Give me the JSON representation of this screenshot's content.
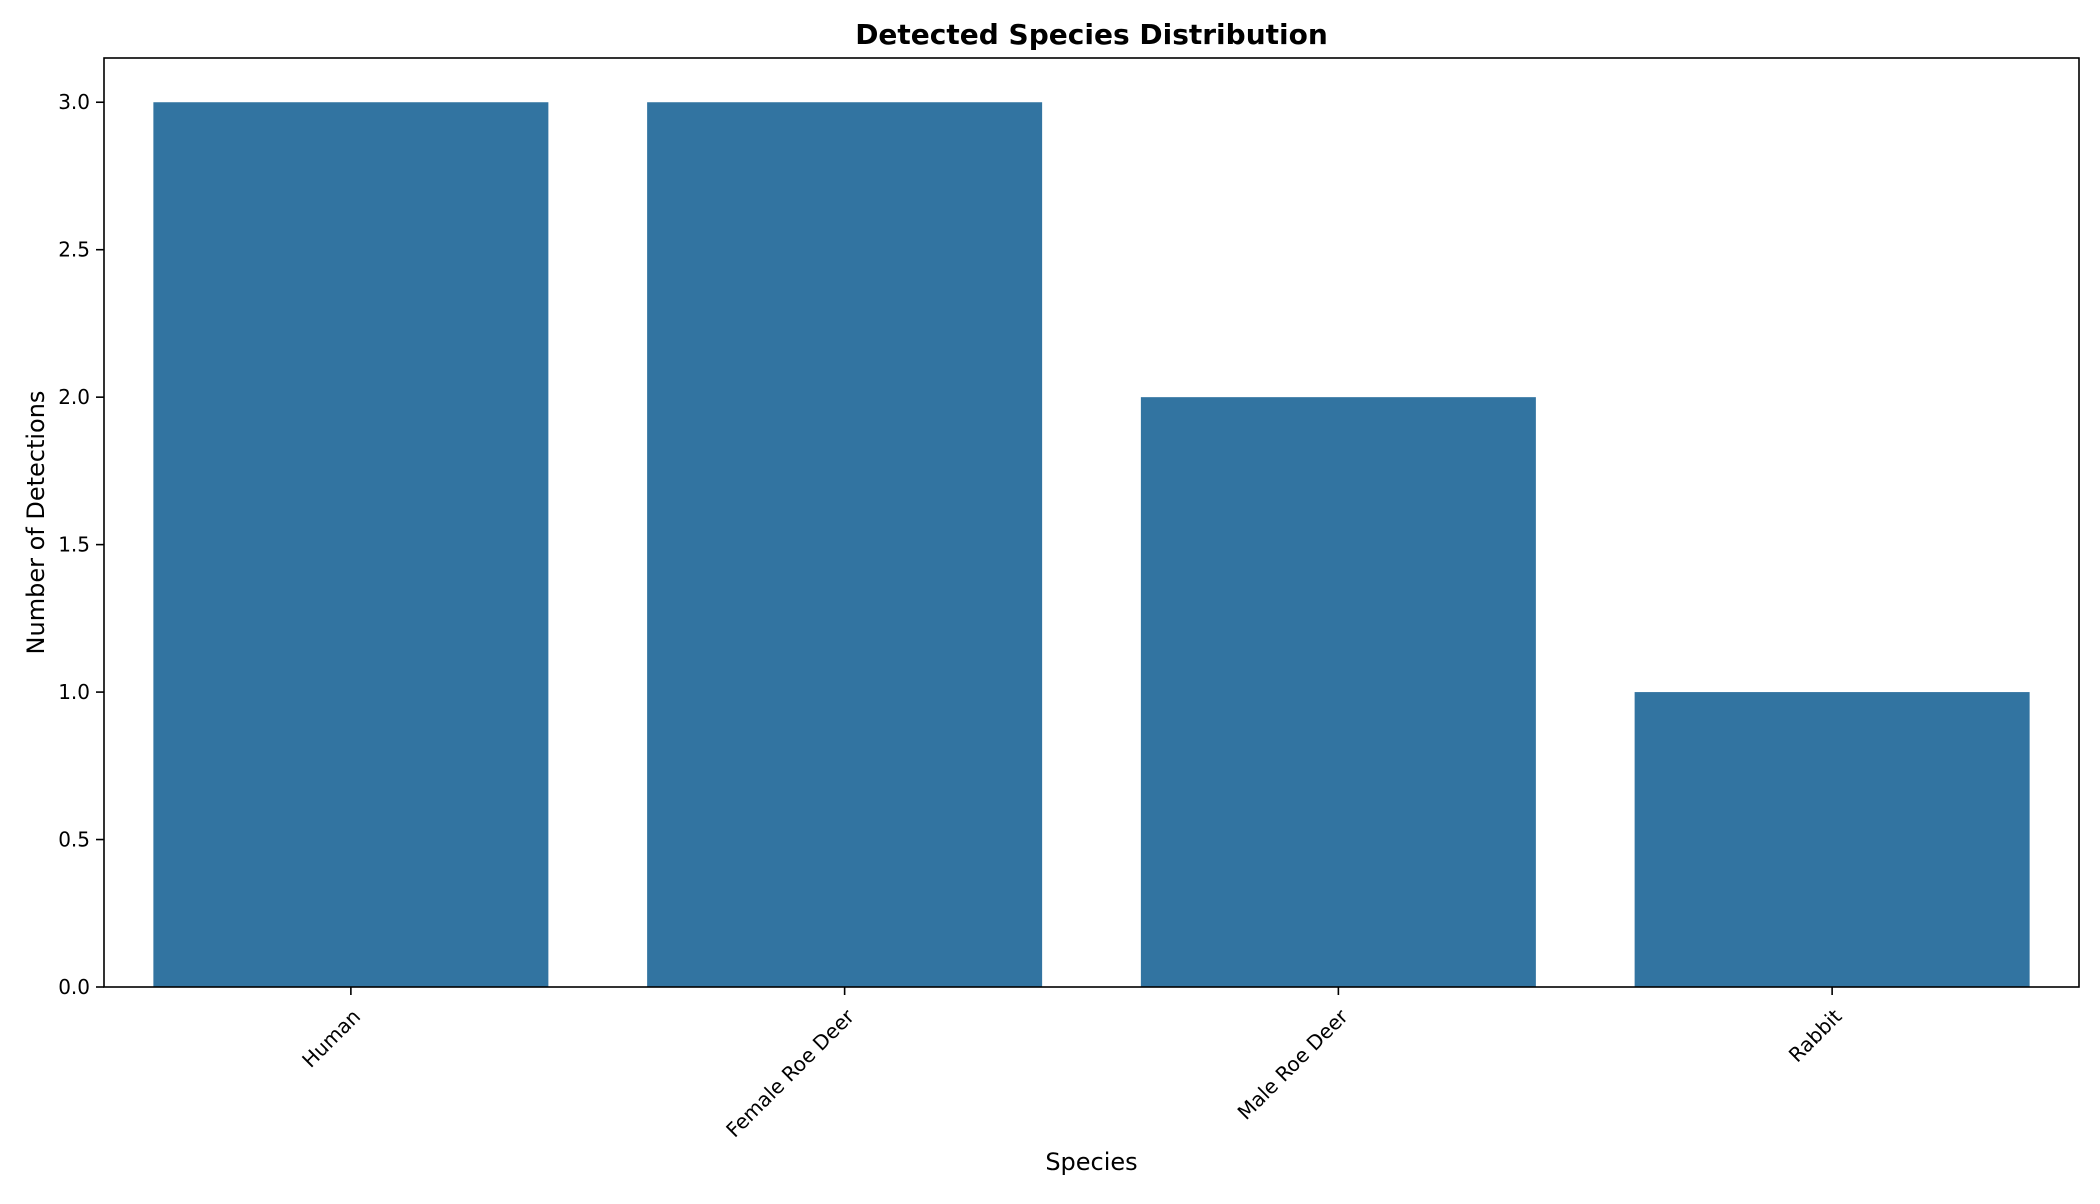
{
  "chart_data": {
    "type": "bar",
    "title": "Detected Species Distribution",
    "xlabel": "Species",
    "ylabel": "Number of Detections",
    "categories": [
      "Human",
      "Female Roe Deer",
      "Male Roe Deer",
      "Rabbit"
    ],
    "values": [
      3,
      3,
      2,
      1
    ],
    "ylim": [
      0,
      3.15
    ],
    "yticks": [
      0.0,
      0.5,
      1.0,
      1.5,
      2.0,
      2.5,
      3.0
    ],
    "ytick_labels": [
      "0.0",
      "0.5",
      "1.0",
      "1.5",
      "2.0",
      "2.5",
      "3.0"
    ],
    "xtick_rotation": 45,
    "grid": false,
    "legend": "none",
    "bar_color": "#3274a1"
  }
}
